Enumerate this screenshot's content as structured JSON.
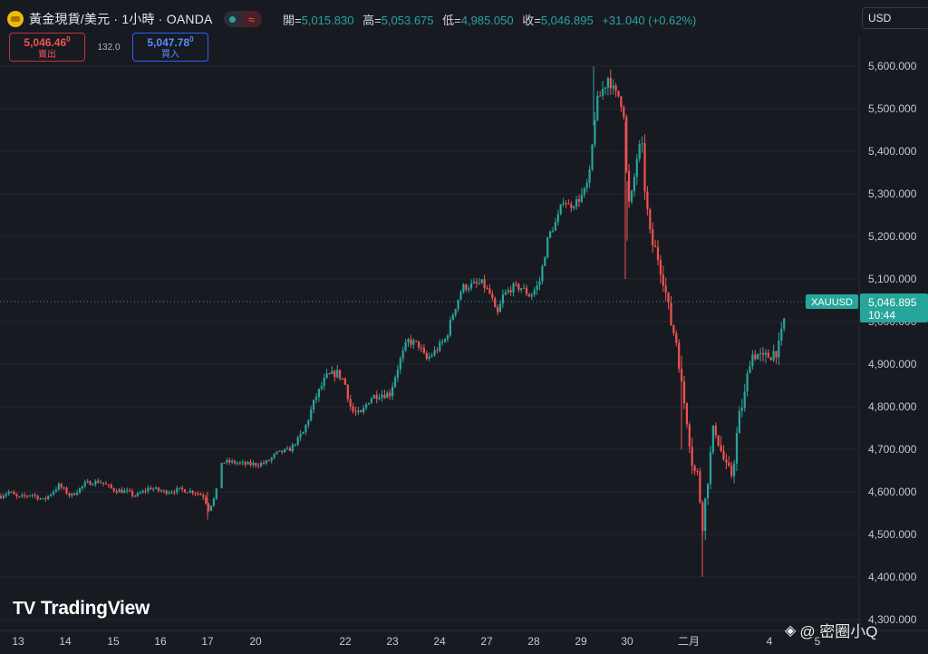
{
  "header": {
    "title": "黃金現貨/美元 · 1小時 · OANDA",
    "status_symbol": "≈",
    "ohlc": [
      {
        "label": "開",
        "value": "5,015.830"
      },
      {
        "label": "高",
        "value": "5,053.675"
      },
      {
        "label": "低",
        "value": "4,985.050"
      },
      {
        "label": "收",
        "value": "5,046.895"
      }
    ],
    "change": "+31.040 (+0.62%)"
  },
  "trade": {
    "sell_price_main": "5,046.46",
    "sell_price_sup": "0",
    "sell_label": "賣出",
    "spread": "132.0",
    "buy_price_main": "5,047.78",
    "buy_price_sup": "0",
    "buy_label": "買入"
  },
  "currency": "USD",
  "brand": "TradingView",
  "watermark": "@ 密圈小Q",
  "colors": {
    "background": "#181a22",
    "up": "#26a69a",
    "down": "#ef5350",
    "accent": "#2962ff"
  },
  "chart_data": {
    "type": "candlestick",
    "symbol_tag": "XAUUSD",
    "last_price": "5,046.895",
    "countdown": "10:44",
    "y_ticks": [
      "5,600.000",
      "5,500.000",
      "5,400.000",
      "5,300.000",
      "5,200.000",
      "5,100.000",
      "5,000.000",
      "4,900.000",
      "4,800.000",
      "4,700.000",
      "4,600.000",
      "4,500.000",
      "4,400.000",
      "4,300.000"
    ],
    "y_tick_values": [
      5600,
      5500,
      5400,
      5300,
      5200,
      5100,
      5000,
      4900,
      4800,
      4700,
      4600,
      4500,
      4400,
      4300
    ],
    "y_range": [
      4290,
      5640
    ],
    "last_value": 5046.895,
    "x_ticks": [
      "13",
      "14",
      "15",
      "16",
      "17",
      "20",
      "22",
      "23",
      "24",
      "27",
      "28",
      "29",
      "30",
      "二月",
      "4",
      "5"
    ],
    "path": [
      [
        0,
        4590
      ],
      [
        10,
        4600
      ],
      [
        20,
        4585
      ],
      [
        35,
        4595
      ],
      [
        48,
        4580
      ],
      [
        65,
        4615
      ],
      [
        78,
        4590
      ],
      [
        95,
        4620
      ],
      [
        110,
        4625
      ],
      [
        125,
        4605
      ],
      [
        140,
        4600
      ],
      [
        150,
        4590
      ],
      [
        165,
        4610
      ],
      [
        180,
        4600
      ],
      [
        200,
        4605
      ],
      [
        215,
        4600
      ],
      [
        225,
        4590
      ],
      [
        230,
        4560
      ],
      [
        238,
        4590
      ],
      [
        243,
        4670
      ],
      [
        255,
        4670
      ],
      [
        270,
        4665
      ],
      [
        285,
        4665
      ],
      [
        295,
        4670
      ],
      [
        305,
        4690
      ],
      [
        320,
        4700
      ],
      [
        335,
        4740
      ],
      [
        348,
        4820
      ],
      [
        360,
        4870
      ],
      [
        372,
        4880
      ],
      [
        380,
        4860
      ],
      [
        388,
        4790
      ],
      [
        398,
        4780
      ],
      [
        408,
        4820
      ],
      [
        418,
        4830
      ],
      [
        430,
        4830
      ],
      [
        440,
        4900
      ],
      [
        450,
        4955
      ],
      [
        462,
        4945
      ],
      [
        470,
        4910
      ],
      [
        480,
        4930
      ],
      [
        492,
        4960
      ],
      [
        500,
        5020
      ],
      [
        510,
        5080
      ],
      [
        520,
        5085
      ],
      [
        532,
        5090
      ],
      [
        542,
        5060
      ],
      [
        548,
        5010
      ],
      [
        555,
        5060
      ],
      [
        565,
        5080
      ],
      [
        575,
        5080
      ],
      [
        585,
        5060
      ],
      [
        595,
        5090
      ],
      [
        605,
        5200
      ],
      [
        615,
        5240
      ],
      [
        622,
        5290
      ],
      [
        628,
        5270
      ],
      [
        635,
        5280
      ],
      [
        645,
        5300
      ],
      [
        652,
        5350
      ],
      [
        655,
        5470
      ],
      [
        660,
        5520
      ],
      [
        668,
        5560
      ],
      [
        672,
        5580
      ],
      [
        678,
        5530
      ],
      [
        684,
        5530
      ],
      [
        690,
        5480
      ],
      [
        692,
        5260
      ],
      [
        698,
        5300
      ],
      [
        702,
        5380
      ],
      [
        708,
        5420
      ],
      [
        712,
        5300
      ],
      [
        718,
        5190
      ],
      [
        725,
        5160
      ],
      [
        732,
        5100
      ],
      [
        740,
        5000
      ],
      [
        747,
        4950
      ],
      [
        752,
        4850
      ],
      [
        758,
        4770
      ],
      [
        765,
        4650
      ],
      [
        770,
        4640
      ],
      [
        775,
        4520
      ],
      [
        782,
        4650
      ],
      [
        788,
        4760
      ],
      [
        795,
        4700
      ],
      [
        802,
        4650
      ],
      [
        808,
        4640
      ],
      [
        815,
        4770
      ],
      [
        822,
        4830
      ],
      [
        828,
        4920
      ],
      [
        835,
        4925
      ],
      [
        842,
        4910
      ],
      [
        848,
        4920
      ],
      [
        855,
        4930
      ],
      [
        860,
        4940
      ],
      [
        865,
        5000
      ],
      [
        868,
        5046.9
      ]
    ]
  }
}
